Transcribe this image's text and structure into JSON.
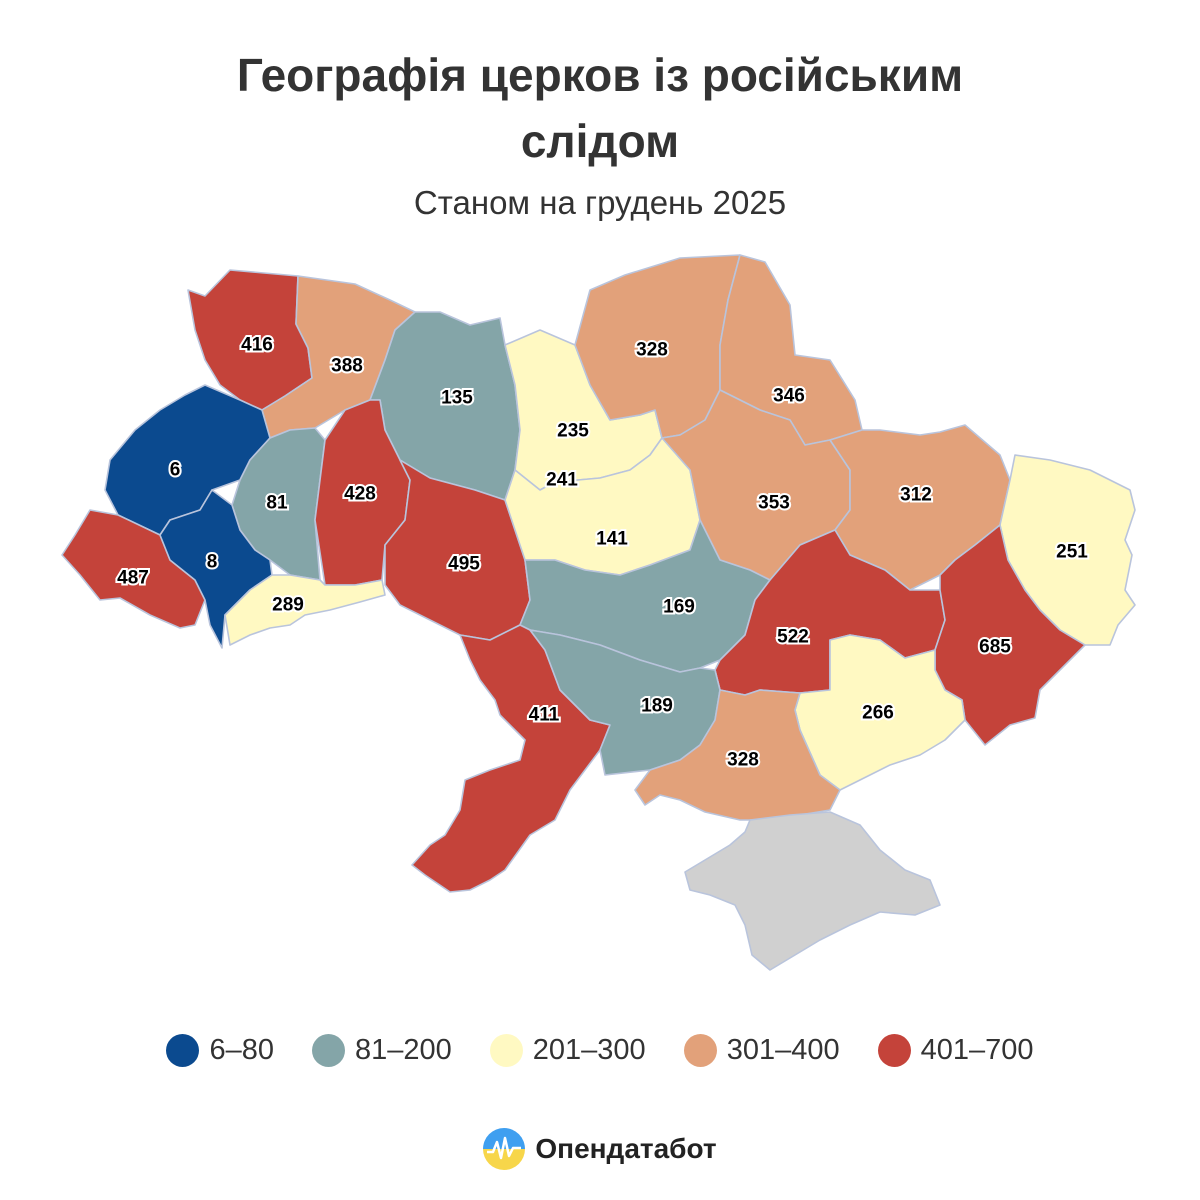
{
  "title_line1": "Географія церков із російським",
  "title_line2": "слідом",
  "subtitle": "Станом на грудень 2025",
  "colors": {
    "range_6_80": "#0b4a8f",
    "range_81_200": "#84a5a8",
    "range_201_300": "#fff9c2",
    "range_301_400": "#e2a17a",
    "range_401_700": "#c4433a",
    "no_data": "#d0d0d0"
  },
  "legend": [
    {
      "label": "6–80",
      "color": "#0b4a8f"
    },
    {
      "label": "81–200",
      "color": "#84a5a8"
    },
    {
      "label": "201–300",
      "color": "#fff9c2"
    },
    {
      "label": "301–400",
      "color": "#e2a17a"
    },
    {
      "label": "401–700",
      "color": "#c4433a"
    }
  ],
  "regions": [
    {
      "id": "volyn",
      "value": "416",
      "range": "range_401_700"
    },
    {
      "id": "rivne",
      "value": "388",
      "range": "range_301_400"
    },
    {
      "id": "zhytomyr",
      "value": "135",
      "range": "range_81_200"
    },
    {
      "id": "kyiv-oblast",
      "value": "235",
      "range": "range_201_300"
    },
    {
      "id": "chernihiv",
      "value": "328",
      "range": "range_301_400"
    },
    {
      "id": "sumy",
      "value": "346",
      "range": "range_301_400"
    },
    {
      "id": "lviv",
      "value": "6",
      "range": "range_6_80"
    },
    {
      "id": "ternopil",
      "value": "81",
      "range": "range_81_200"
    },
    {
      "id": "khmelnytskyi",
      "value": "428",
      "range": "range_401_700"
    },
    {
      "id": "vinnytsia",
      "value": "495",
      "range": "range_401_700"
    },
    {
      "id": "cherkasy",
      "value": "241",
      "range": "range_201_300"
    },
    {
      "id": "kirovohrad-north",
      "value": "141",
      "range": "range_81_200"
    },
    {
      "id": "poltava",
      "value": "353",
      "range": "range_301_400"
    },
    {
      "id": "kharkiv",
      "value": "312",
      "range": "range_301_400"
    },
    {
      "id": "luhansk",
      "value": "251",
      "range": "range_201_300"
    },
    {
      "id": "zakarpattia",
      "value": "487",
      "range": "range_401_700"
    },
    {
      "id": "ivano-frankivsk",
      "value": "8",
      "range": "range_6_80"
    },
    {
      "id": "chernivtsi",
      "value": "289",
      "range": "range_201_300"
    },
    {
      "id": "kirovohrad",
      "value": "169",
      "range": "range_81_200"
    },
    {
      "id": "dnipropetrovsk",
      "value": "522",
      "range": "range_401_700"
    },
    {
      "id": "donetsk",
      "value": "685",
      "range": "range_401_700"
    },
    {
      "id": "odesa",
      "value": "411",
      "range": "range_401_700"
    },
    {
      "id": "mykolaiv",
      "value": "189",
      "range": "range_81_200"
    },
    {
      "id": "zaporizhzhia",
      "value": "266",
      "range": "range_201_300"
    },
    {
      "id": "kherson",
      "value": "328",
      "range": "range_301_400"
    },
    {
      "id": "crimea",
      "value": "",
      "range": "no_data"
    }
  ],
  "brand_name": "Опендатабот",
  "brand_icon": "opendatabot-logo-icon"
}
